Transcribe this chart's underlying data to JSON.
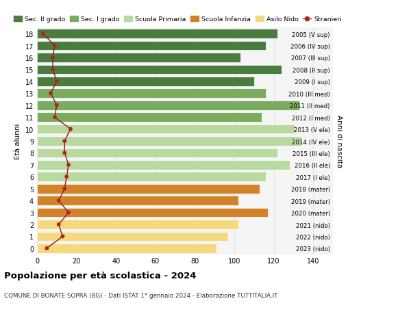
{
  "ages": [
    18,
    17,
    16,
    15,
    14,
    13,
    12,
    11,
    10,
    9,
    8,
    7,
    6,
    5,
    4,
    3,
    2,
    1,
    0
  ],
  "years": [
    "2005 (V sup)",
    "2006 (IV sup)",
    "2007 (III sup)",
    "2008 (II sup)",
    "2009 (I sup)",
    "2010 (III med)",
    "2011 (II med)",
    "2012 (I med)",
    "2013 (V ele)",
    "2014 (IV ele)",
    "2015 (III ele)",
    "2016 (II ele)",
    "2017 (I ele)",
    "2018 (mater)",
    "2019 (mater)",
    "2020 (mater)",
    "2021 (nido)",
    "2022 (nido)",
    "2023 (nido)"
  ],
  "bar_values": [
    122,
    116,
    103,
    124,
    110,
    116,
    133,
    114,
    131,
    134,
    122,
    128,
    116,
    113,
    102,
    117,
    102,
    97,
    91
  ],
  "stranieri_values": [
    3,
    9,
    8,
    8,
    10,
    7,
    10,
    9,
    17,
    14,
    14,
    16,
    15,
    14,
    11,
    16,
    11,
    13,
    5
  ],
  "colors": {
    "sec_II": "#4a7c3f",
    "sec_I": "#7aab5e",
    "primaria": "#b8d9a0",
    "infanzia": "#d2832a",
    "nido": "#f5d97e",
    "stranieri_line": "#8b1a1a",
    "stranieri_dot": "#b22222"
  },
  "bar_colors": [
    "#4a7c3f",
    "#4a7c3f",
    "#4a7c3f",
    "#4a7c3f",
    "#4a7c3f",
    "#7aab5e",
    "#7aab5e",
    "#7aab5e",
    "#b8d9a0",
    "#b8d9a0",
    "#b8d9a0",
    "#b8d9a0",
    "#b8d9a0",
    "#d2832a",
    "#d2832a",
    "#d2832a",
    "#f5d97e",
    "#f5d97e",
    "#f5d97e"
  ],
  "title": "Popolazione per età scolastica - 2024",
  "subtitle": "COMUNE DI BONATE SOPRA (BG) - Dati ISTAT 1° gennaio 2024 - Elaborazione TUTTITALIA.IT",
  "ylabel_left": "Età alunni",
  "ylabel_right": "Anni di nascita",
  "xlim": [
    0,
    150
  ],
  "xticks": [
    0,
    20,
    40,
    60,
    80,
    100,
    120,
    140
  ],
  "background_color": "#ffffff",
  "plot_bg": "#f5f5f5",
  "legend_labels": [
    "Sec. II grado",
    "Sec. I grado",
    "Scuola Primaria",
    "Scuola Infanzia",
    "Asilo Nido",
    "Stranieri"
  ]
}
